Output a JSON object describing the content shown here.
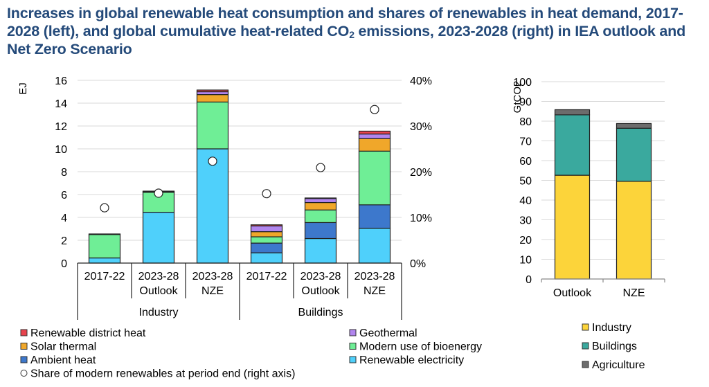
{
  "title": {
    "part1": "Increases in global renewable heat consumption and shares of renewables in heat demand, 2017-2028 (left), and global cumulative heat-related CO",
    "sub": "2",
    "part2": " emissions, 2023-2028 (right) in IEA outlook and Net Zero Scenario"
  },
  "chart_data": [
    {
      "type": "bar",
      "stacked": true,
      "ylabel": "EJ",
      "ylim": [
        0,
        16
      ],
      "yticks": [
        "0",
        "2",
        "4",
        "6",
        "8",
        "10",
        "12",
        "14",
        "16"
      ],
      "y2lim": [
        0,
        40
      ],
      "y2ticks": [
        "0%",
        "10%",
        "20%",
        "30%",
        "40%"
      ],
      "grid": true,
      "groups": [
        {
          "label": "Industry",
          "categories": [
            [
              "2017-22",
              ""
            ],
            [
              "2023-28",
              "Outlook"
            ],
            [
              "2023-28",
              "NZE"
            ]
          ]
        },
        {
          "label": "Buildings",
          "categories": [
            [
              "2017-22",
              ""
            ],
            [
              "2023-28",
              "Outlook"
            ],
            [
              "2023-28",
              "NZE"
            ]
          ]
        }
      ],
      "series": [
        {
          "name": "Renewable electricity",
          "color": "#4fd0fb",
          "values": [
            0.45,
            4.45,
            10.0,
            0.9,
            2.15,
            3.05
          ]
        },
        {
          "name": "Ambient heat",
          "color": "#3d78cc",
          "values": [
            0,
            0,
            0,
            0.85,
            1.4,
            2.05
          ]
        },
        {
          "name": "Modern use of bioenergy",
          "color": "#6fee96",
          "values": [
            2.05,
            1.75,
            4.1,
            0.55,
            1.1,
            4.7
          ]
        },
        {
          "name": "Solar thermal",
          "color": "#f0a72a",
          "values": [
            0,
            0.03,
            0.65,
            0.45,
            0.65,
            1.1
          ]
        },
        {
          "name": "Geothermal",
          "color": "#b185ee",
          "values": [
            0,
            0.02,
            0.25,
            0.5,
            0.35,
            0.4
          ]
        },
        {
          "name": "Renewable district heat",
          "color": "#e8434d",
          "values": [
            0.05,
            0.05,
            0.15,
            0.1,
            0.05,
            0.25
          ]
        }
      ],
      "share_series": {
        "name": "Share of modern renewables at period end (right axis)",
        "values": [
          12.1,
          15.3,
          22.3,
          15.2,
          20.9,
          33.6
        ],
        "unit": "%"
      },
      "legend": [
        [
          "Renewable district heat",
          "Geothermal"
        ],
        [
          "Solar thermal",
          "Modern use of bioenergy"
        ],
        [
          "Ambient heat",
          "Renewable electricity"
        ],
        [
          "Share of modern renewables at period end (right axis)"
        ]
      ],
      "legend_placement": "bottom"
    },
    {
      "type": "bar",
      "stacked": true,
      "ylabel": "GtCO2",
      "ylim": [
        0,
        100
      ],
      "yticks": [
        "0",
        "10",
        "20",
        "30",
        "40",
        "50",
        "60",
        "70",
        "80",
        "90",
        "100"
      ],
      "grid": true,
      "categories": [
        "Outlook",
        "NZE"
      ],
      "series": [
        {
          "name": "Industry",
          "color": "#fcd43a",
          "values": [
            52.6,
            49.5
          ]
        },
        {
          "name": "Buildings",
          "color": "#3aa99e",
          "values": [
            30.6,
            26.9
          ]
        },
        {
          "name": "Agriculture",
          "color": "#6c6c6c",
          "values": [
            2.6,
            2.4
          ]
        }
      ],
      "legend_placement": "bottom-right"
    }
  ]
}
